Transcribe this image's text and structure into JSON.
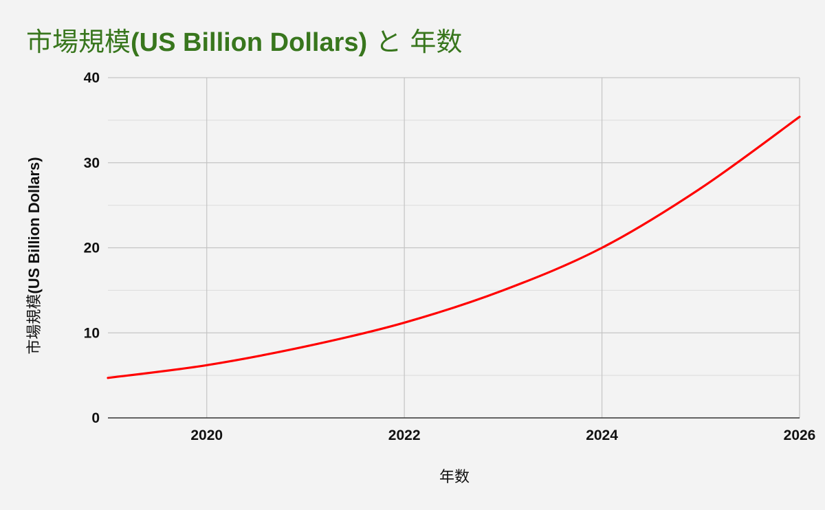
{
  "chart_data": {
    "type": "line",
    "title_main": "市場規模",
    "title_bold": "(US Billion Dollars)",
    "title_tail": " と 年数",
    "ylabel_main": "市場規模",
    "ylabel_bold": "(US Billion Dollars)",
    "xlabel": "年数",
    "xlim": [
      2019,
      2026
    ],
    "ylim": [
      0,
      40
    ],
    "x_ticks": [
      "2020",
      "2022",
      "2024",
      "2026"
    ],
    "y_ticks": [
      "0",
      "10",
      "20",
      "30",
      "40"
    ],
    "grid": true,
    "line_color": "#ff0000",
    "title_color": "#38761d",
    "series": [
      {
        "x": [
          2019,
          2020,
          2021,
          2022,
          2023,
          2024,
          2025,
          2026
        ],
        "values": [
          4.7,
          6.2,
          8.4,
          11.2,
          15.0,
          20.0,
          27.0,
          35.4
        ]
      }
    ]
  }
}
